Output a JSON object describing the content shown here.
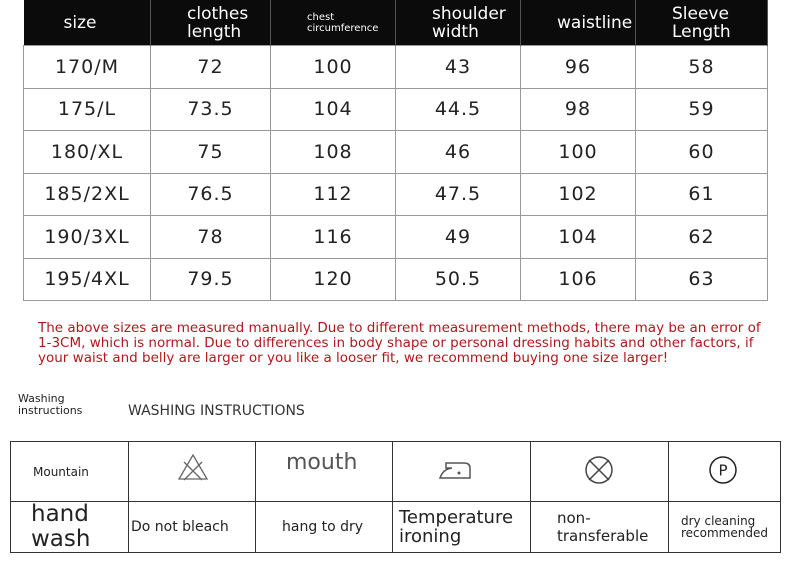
{
  "size_table": {
    "headers": [
      [
        "size"
      ],
      [
        "clothes",
        "length"
      ],
      [
        "chest",
        "circumference"
      ],
      [
        "shoulder",
        "width"
      ],
      [
        "waistline"
      ],
      [
        "Sleeve",
        "Length"
      ]
    ],
    "rows": [
      [
        "170/M",
        "72",
        "100",
        "43",
        "96",
        "58"
      ],
      [
        "175/L",
        "73.5",
        "104",
        "44.5",
        "98",
        "59"
      ],
      [
        "180/XL",
        "75",
        "108",
        "46",
        "100",
        "60"
      ],
      [
        "185/2XL",
        "76.5",
        "112",
        "47.5",
        "102",
        "61"
      ],
      [
        "190/3XL",
        "78",
        "116",
        "49",
        "104",
        "62"
      ],
      [
        "195/4XL",
        "79.5",
        "120",
        "50.5",
        "106",
        "63"
      ]
    ]
  },
  "note": "The above sizes are measured manually. Due to different measurement methods, there may be an error of 1-3CM, which is normal. Due to differences in body shape or personal dressing habits and other factors, if your waist and belly are larger or you like a looser fit, we recommend buying one size larger!",
  "washing_label": "Washing instructions",
  "washing_title": "WASHING INSTRUCTIONS",
  "care_table": {
    "top": {
      "first": "Mountain",
      "mouth": "mouth",
      "dry_clean_symbol": "P"
    },
    "bottom": [
      "hand wash",
      "Do not bleach",
      "hang to dry",
      "Temperature ironing",
      "non-transferable",
      "dry cleaning recommended"
    ]
  }
}
